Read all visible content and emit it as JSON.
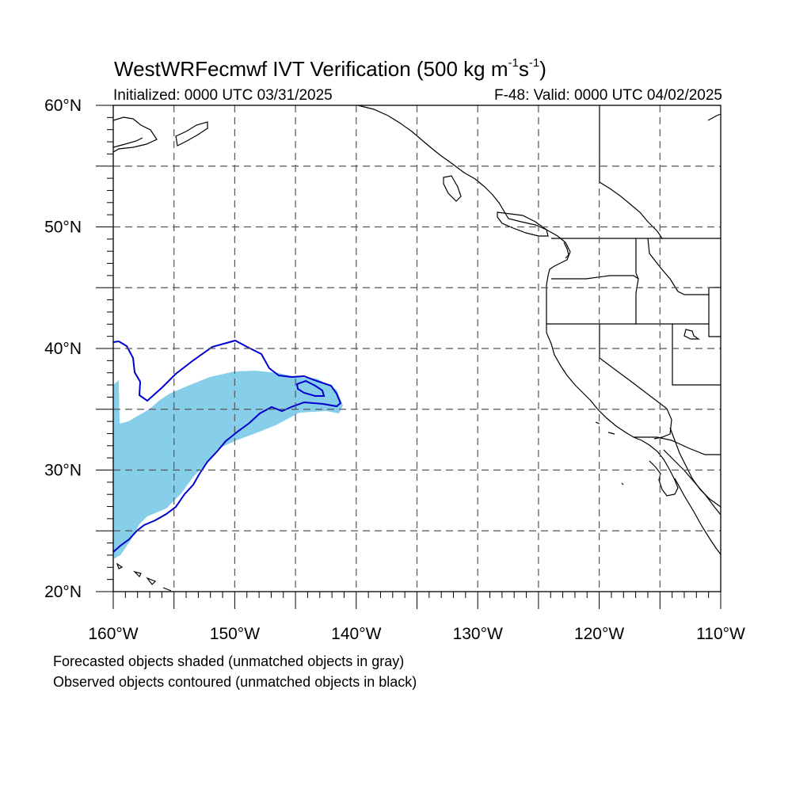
{
  "title": {
    "main_prefix": "WestWRFecmwf IVT Verification (500 kg m",
    "sup1": "-1",
    "mid": "s",
    "sup2": "-1",
    "suffix": ")"
  },
  "subtitle_left": "Initialized: 0000 UTC 03/31/2025",
  "subtitle_right": "F-48: Valid: 0000 UTC 04/02/2025",
  "notes": {
    "forecast": "Forecasted objects shaded (unmatched objects in gray)",
    "observed": "Observed objects contoured (unmatched objects in black)"
  },
  "map": {
    "lon_range": [
      -160,
      -110
    ],
    "lat_range": [
      20,
      60
    ],
    "lat_ticks": [
      {
        "value": 20,
        "label": "20°N"
      },
      {
        "value": 30,
        "label": "30°N"
      },
      {
        "value": 40,
        "label": "40°N"
      },
      {
        "value": 50,
        "label": "50°N"
      },
      {
        "value": 60,
        "label": "60°N"
      }
    ],
    "lon_ticks": [
      {
        "value": -160,
        "label": "160°W"
      },
      {
        "value": -150,
        "label": "150°W"
      },
      {
        "value": -140,
        "label": "140°W"
      },
      {
        "value": -130,
        "label": "130°W"
      },
      {
        "value": -120,
        "label": "120°W"
      },
      {
        "value": -110,
        "label": "110°W"
      }
    ],
    "grid_lons": [
      -155,
      -150,
      -145,
      -140,
      -135,
      -130,
      -125,
      -120,
      -115
    ],
    "grid_lats": [
      25,
      30,
      35,
      40,
      45,
      50,
      55
    ],
    "colors": {
      "forecast_fill": "#87ceeb",
      "observed_contour": "#0000cd",
      "coastline": "#000000",
      "grid": "#555555"
    }
  }
}
